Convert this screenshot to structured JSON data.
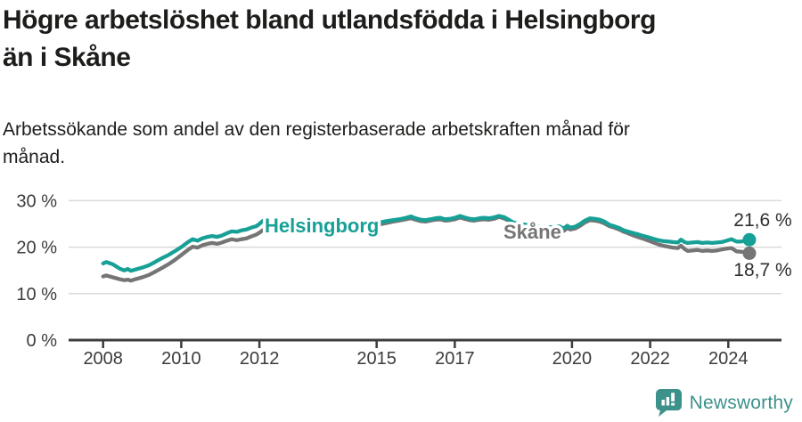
{
  "header": {
    "title_line1": "Högre arbetslöshet bland utlandsfödda i Helsingborg",
    "title_line2": "än i Skåne",
    "subtitle_line1": "Arbetssökande som andel av den registerbaserade arbetskraften månad för",
    "subtitle_line2": "månad."
  },
  "footer": {
    "brand": "Newsworthy",
    "logo_icon": "bar-chart-speech-bubble"
  },
  "colors": {
    "helsingborg": "#17a096",
    "skane": "#757575",
    "grid": "#dadada",
    "axis": "#3c3c3c",
    "title_text": "#1d1d1b",
    "value_label": "#2e2e2e",
    "brand": "#3c918b"
  },
  "chart_data": {
    "type": "line",
    "title": "Högre arbetslöshet bland utlandsfödda i Helsingborg än i Skåne",
    "subtitle": "Arbetssökande som andel av den registerbaserade arbetskraften månad för månad.",
    "xlabel": "",
    "ylabel": "",
    "x_ticks": [
      2008,
      2010,
      2012,
      2015,
      2017,
      2020,
      2022,
      2024
    ],
    "x_tick_labels": [
      "2008",
      "2010",
      "2012",
      "2015",
      "2017",
      "2020",
      "2022",
      "2024"
    ],
    "y_ticks": [
      0,
      10,
      20,
      30
    ],
    "y_tick_labels": [
      "0 %",
      "10 %",
      "20 %",
      "30 %"
    ],
    "ylim": [
      0,
      34
    ],
    "xlim": [
      2007.1,
      2025.4
    ],
    "grid": "horizontal",
    "legend_position": "inline-labels",
    "series": [
      {
        "name": "Helsingborg",
        "color": "#17a096",
        "end_label": "21,6 %",
        "end_value": 21.6,
        "points": [
          [
            2008.0,
            16.5
          ],
          [
            2008.08,
            16.8
          ],
          [
            2008.25,
            16.3
          ],
          [
            2008.42,
            15.4
          ],
          [
            2008.54,
            15.0
          ],
          [
            2008.63,
            15.3
          ],
          [
            2008.71,
            14.9
          ],
          [
            2008.83,
            15.2
          ],
          [
            2009.0,
            15.6
          ],
          [
            2009.17,
            16.1
          ],
          [
            2009.33,
            16.8
          ],
          [
            2009.5,
            17.6
          ],
          [
            2009.67,
            18.3
          ],
          [
            2009.83,
            19.1
          ],
          [
            2010.0,
            20.0
          ],
          [
            2010.17,
            21.1
          ],
          [
            2010.29,
            21.7
          ],
          [
            2010.42,
            21.4
          ],
          [
            2010.54,
            21.9
          ],
          [
            2010.67,
            22.2
          ],
          [
            2010.79,
            22.4
          ],
          [
            2010.92,
            22.2
          ],
          [
            2011.04,
            22.5
          ],
          [
            2011.17,
            23.0
          ],
          [
            2011.29,
            23.4
          ],
          [
            2011.42,
            23.3
          ],
          [
            2011.54,
            23.6
          ],
          [
            2011.67,
            23.8
          ],
          [
            2011.79,
            24.2
          ],
          [
            2011.92,
            24.5
          ],
          [
            2012.0,
            25.0
          ],
          [
            2012.08,
            25.6
          ],
          [
            2012.17,
            26.1
          ],
          [
            2012.25,
            25.5
          ],
          [
            2012.42,
            25.2
          ],
          [
            2012.58,
            25.0
          ],
          [
            2012.75,
            25.1
          ],
          [
            2012.92,
            25.3
          ],
          [
            2013.08,
            25.0
          ],
          [
            2013.25,
            24.8
          ],
          [
            2013.42,
            24.9
          ],
          [
            2013.58,
            24.7
          ],
          [
            2013.75,
            24.8
          ],
          [
            2013.92,
            25.0
          ],
          [
            2014.08,
            24.9
          ],
          [
            2014.25,
            24.8
          ],
          [
            2014.42,
            24.9
          ],
          [
            2014.58,
            25.0
          ],
          [
            2014.75,
            25.1
          ],
          [
            2014.92,
            25.1
          ],
          [
            2015.08,
            25.3
          ],
          [
            2015.25,
            25.6
          ],
          [
            2015.42,
            25.8
          ],
          [
            2015.58,
            26.0
          ],
          [
            2015.75,
            26.3
          ],
          [
            2015.88,
            26.6
          ],
          [
            2016.0,
            26.2
          ],
          [
            2016.13,
            25.9
          ],
          [
            2016.25,
            25.8
          ],
          [
            2016.38,
            26.0
          ],
          [
            2016.5,
            26.2
          ],
          [
            2016.63,
            26.3
          ],
          [
            2016.75,
            26.0
          ],
          [
            2016.88,
            26.1
          ],
          [
            2017.0,
            26.3
          ],
          [
            2017.13,
            26.7
          ],
          [
            2017.25,
            26.4
          ],
          [
            2017.38,
            26.1
          ],
          [
            2017.5,
            26.0
          ],
          [
            2017.63,
            26.2
          ],
          [
            2017.75,
            26.3
          ],
          [
            2017.88,
            26.2
          ],
          [
            2018.0,
            26.4
          ],
          [
            2018.13,
            26.7
          ],
          [
            2018.25,
            26.5
          ],
          [
            2018.38,
            25.9
          ],
          [
            2018.5,
            25.3
          ],
          [
            2018.67,
            25.0
          ],
          [
            2018.83,
            24.8
          ],
          [
            2019.0,
            24.6
          ],
          [
            2019.17,
            24.4
          ],
          [
            2019.33,
            24.3
          ],
          [
            2019.5,
            24.3
          ],
          [
            2019.67,
            24.5
          ],
          [
            2019.79,
            24.0
          ],
          [
            2019.88,
            24.6
          ],
          [
            2019.96,
            24.2
          ],
          [
            2020.08,
            24.4
          ],
          [
            2020.21,
            25.0
          ],
          [
            2020.33,
            25.7
          ],
          [
            2020.46,
            26.2
          ],
          [
            2020.58,
            26.1
          ],
          [
            2020.71,
            25.9
          ],
          [
            2020.83,
            25.5
          ],
          [
            2020.96,
            24.8
          ],
          [
            2021.08,
            24.5
          ],
          [
            2021.21,
            24.1
          ],
          [
            2021.33,
            23.6
          ],
          [
            2021.46,
            23.3
          ],
          [
            2021.58,
            23.0
          ],
          [
            2021.71,
            22.7
          ],
          [
            2021.83,
            22.4
          ],
          [
            2021.96,
            22.1
          ],
          [
            2022.08,
            21.8
          ],
          [
            2022.21,
            21.5
          ],
          [
            2022.33,
            21.3
          ],
          [
            2022.46,
            21.2
          ],
          [
            2022.58,
            21.1
          ],
          [
            2022.71,
            21.0
          ],
          [
            2022.79,
            21.6
          ],
          [
            2022.88,
            21.1
          ],
          [
            2022.96,
            20.9
          ],
          [
            2023.08,
            21.0
          ],
          [
            2023.21,
            21.1
          ],
          [
            2023.33,
            20.9
          ],
          [
            2023.46,
            21.0
          ],
          [
            2023.58,
            20.9
          ],
          [
            2023.71,
            21.0
          ],
          [
            2023.83,
            21.1
          ],
          [
            2023.96,
            21.4
          ],
          [
            2024.08,
            21.7
          ],
          [
            2024.21,
            21.2
          ],
          [
            2024.33,
            21.2
          ],
          [
            2024.42,
            21.4
          ],
          [
            2024.54,
            21.6
          ]
        ]
      },
      {
        "name": "Skåne",
        "color": "#757575",
        "end_label": "18,7 %",
        "end_value": 18.7,
        "points": [
          [
            2008.0,
            13.7
          ],
          [
            2008.08,
            13.9
          ],
          [
            2008.25,
            13.5
          ],
          [
            2008.42,
            13.1
          ],
          [
            2008.54,
            12.9
          ],
          [
            2008.63,
            13.0
          ],
          [
            2008.71,
            12.8
          ],
          [
            2008.83,
            13.1
          ],
          [
            2009.0,
            13.5
          ],
          [
            2009.17,
            14.0
          ],
          [
            2009.33,
            14.7
          ],
          [
            2009.5,
            15.5
          ],
          [
            2009.67,
            16.3
          ],
          [
            2009.83,
            17.2
          ],
          [
            2010.0,
            18.3
          ],
          [
            2010.17,
            19.4
          ],
          [
            2010.29,
            20.1
          ],
          [
            2010.42,
            19.9
          ],
          [
            2010.54,
            20.4
          ],
          [
            2010.67,
            20.7
          ],
          [
            2010.79,
            20.9
          ],
          [
            2010.92,
            20.7
          ],
          [
            2011.04,
            21.0
          ],
          [
            2011.17,
            21.4
          ],
          [
            2011.29,
            21.7
          ],
          [
            2011.42,
            21.5
          ],
          [
            2011.54,
            21.7
          ],
          [
            2011.67,
            21.9
          ],
          [
            2011.79,
            22.3
          ],
          [
            2011.92,
            22.7
          ],
          [
            2012.0,
            23.1
          ],
          [
            2012.08,
            23.6
          ],
          [
            2012.17,
            23.9
          ],
          [
            2012.25,
            23.5
          ],
          [
            2012.42,
            23.3
          ],
          [
            2012.58,
            23.4
          ],
          [
            2012.75,
            23.6
          ],
          [
            2012.92,
            23.8
          ],
          [
            2013.08,
            23.7
          ],
          [
            2013.25,
            23.6
          ],
          [
            2013.42,
            23.8
          ],
          [
            2013.58,
            23.7
          ],
          [
            2013.75,
            23.9
          ],
          [
            2013.92,
            24.1
          ],
          [
            2014.08,
            24.0
          ],
          [
            2014.25,
            24.1
          ],
          [
            2014.42,
            24.2
          ],
          [
            2014.58,
            24.4
          ],
          [
            2014.75,
            24.5
          ],
          [
            2014.92,
            24.6
          ],
          [
            2015.08,
            24.9
          ],
          [
            2015.25,
            25.2
          ],
          [
            2015.42,
            25.5
          ],
          [
            2015.58,
            25.7
          ],
          [
            2015.75,
            26.0
          ],
          [
            2015.88,
            26.2
          ],
          [
            2016.0,
            25.9
          ],
          [
            2016.13,
            25.6
          ],
          [
            2016.25,
            25.5
          ],
          [
            2016.38,
            25.7
          ],
          [
            2016.5,
            25.9
          ],
          [
            2016.63,
            26.0
          ],
          [
            2016.75,
            25.7
          ],
          [
            2016.88,
            25.8
          ],
          [
            2017.0,
            26.0
          ],
          [
            2017.13,
            26.4
          ],
          [
            2017.25,
            26.1
          ],
          [
            2017.38,
            25.8
          ],
          [
            2017.5,
            25.7
          ],
          [
            2017.63,
            25.9
          ],
          [
            2017.75,
            26.0
          ],
          [
            2017.88,
            25.9
          ],
          [
            2018.0,
            26.1
          ],
          [
            2018.13,
            26.5
          ],
          [
            2018.25,
            26.2
          ],
          [
            2018.38,
            25.7
          ],
          [
            2018.5,
            25.1
          ],
          [
            2018.67,
            24.8
          ],
          [
            2018.83,
            24.5
          ],
          [
            2019.0,
            24.2
          ],
          [
            2019.17,
            24.0
          ],
          [
            2019.33,
            23.9
          ],
          [
            2019.5,
            23.8
          ],
          [
            2019.67,
            24.0
          ],
          [
            2019.79,
            23.5
          ],
          [
            2019.88,
            24.1
          ],
          [
            2019.96,
            23.8
          ],
          [
            2020.08,
            24.0
          ],
          [
            2020.21,
            24.6
          ],
          [
            2020.33,
            25.3
          ],
          [
            2020.46,
            25.8
          ],
          [
            2020.58,
            25.7
          ],
          [
            2020.71,
            25.5
          ],
          [
            2020.83,
            25.1
          ],
          [
            2020.96,
            24.5
          ],
          [
            2021.08,
            24.2
          ],
          [
            2021.21,
            23.8
          ],
          [
            2021.33,
            23.3
          ],
          [
            2021.46,
            22.9
          ],
          [
            2021.58,
            22.5
          ],
          [
            2021.71,
            22.1
          ],
          [
            2021.83,
            21.8
          ],
          [
            2021.96,
            21.4
          ],
          [
            2022.08,
            21.0
          ],
          [
            2022.21,
            20.6
          ],
          [
            2022.33,
            20.3
          ],
          [
            2022.46,
            20.1
          ],
          [
            2022.58,
            19.9
          ],
          [
            2022.71,
            19.8
          ],
          [
            2022.79,
            20.3
          ],
          [
            2022.88,
            19.6
          ],
          [
            2022.96,
            19.2
          ],
          [
            2023.08,
            19.3
          ],
          [
            2023.21,
            19.4
          ],
          [
            2023.33,
            19.2
          ],
          [
            2023.46,
            19.3
          ],
          [
            2023.58,
            19.2
          ],
          [
            2023.71,
            19.3
          ],
          [
            2023.83,
            19.5
          ],
          [
            2023.96,
            19.7
          ],
          [
            2024.08,
            19.8
          ],
          [
            2024.21,
            19.1
          ],
          [
            2024.33,
            19.0
          ],
          [
            2024.42,
            18.9
          ],
          [
            2024.54,
            18.7
          ]
        ]
      }
    ]
  }
}
